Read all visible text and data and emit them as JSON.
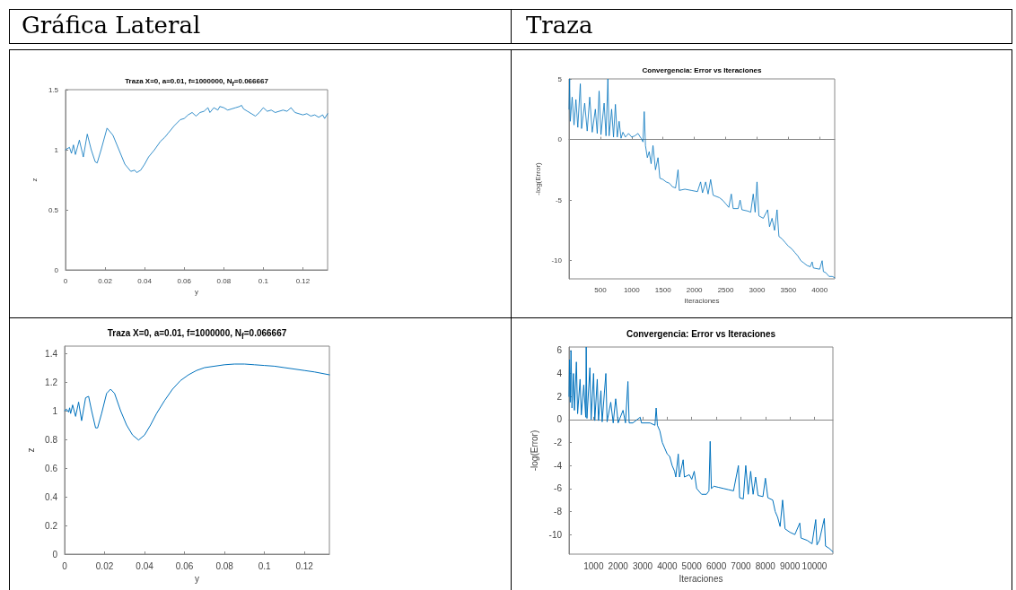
{
  "chart_data": [
    {
      "type": "line",
      "title": "Traza X=0, a=0.01, f=1000000, N$_{f}$=0.066667",
      "xlabel": "y",
      "ylabel": "z",
      "annotations": [
        "Gráfica Lateral"
      ],
      "xlim": [
        0,
        0.1325
      ],
      "ylim": [
        0,
        1.5
      ],
      "xticks": [
        0,
        0.02,
        0.04,
        0.06,
        0.08,
        0.1,
        0.12
      ],
      "yticks": [
        0,
        0.5,
        1,
        1.5
      ],
      "series": [
        {
          "color": "#0072bd",
          "x": [
            0,
            0.002,
            0.003,
            0.004,
            0.005,
            0.007,
            0.009,
            0.011,
            0.013,
            0.015,
            0.016,
            0.018,
            0.021,
            0.024,
            0.027,
            0.03,
            0.033,
            0.035,
            0.036,
            0.038,
            0.04,
            0.042,
            0.045,
            0.048,
            0.05,
            0.052,
            0.055,
            0.058,
            0.06,
            0.062,
            0.064,
            0.066,
            0.068,
            0.07,
            0.072,
            0.073,
            0.075,
            0.077,
            0.078,
            0.08,
            0.082,
            0.084,
            0.086,
            0.088,
            0.089,
            0.09,
            0.092,
            0.094,
            0.096,
            0.098,
            0.1,
            0.102,
            0.104,
            0.106,
            0.108,
            0.11,
            0.112,
            0.114,
            0.116,
            0.118,
            0.12,
            0.122,
            0.124,
            0.126,
            0.128,
            0.13,
            0.131,
            0.1325
          ],
          "values": [
            1.0,
            1.02,
            0.97,
            1.04,
            0.96,
            1.08,
            0.94,
            1.13,
            1.0,
            0.9,
            0.89,
            1.0,
            1.18,
            1.12,
            1.0,
            0.88,
            0.82,
            0.83,
            0.81,
            0.83,
            0.88,
            0.94,
            1.0,
            1.07,
            1.1,
            1.14,
            1.2,
            1.25,
            1.26,
            1.29,
            1.31,
            1.28,
            1.31,
            1.32,
            1.35,
            1.31,
            1.35,
            1.33,
            1.36,
            1.35,
            1.33,
            1.34,
            1.35,
            1.36,
            1.37,
            1.34,
            1.32,
            1.3,
            1.28,
            1.31,
            1.35,
            1.32,
            1.33,
            1.31,
            1.32,
            1.33,
            1.32,
            1.35,
            1.31,
            1.3,
            1.29,
            1.3,
            1.28,
            1.29,
            1.27,
            1.29,
            1.26,
            1.3
          ]
        }
      ]
    },
    {
      "type": "line",
      "title": "Convergencia: Error vs Iteraciones",
      "xlabel": "Iteraciones",
      "ylabel": "-log(Error)",
      "annotations": [
        "Traza"
      ],
      "xlim": [
        0,
        4240
      ],
      "ylim": [
        -11.5,
        5
      ],
      "xticks": [
        500,
        1000,
        1500,
        2000,
        2500,
        3000,
        3500,
        4000
      ],
      "yticks": [
        -10,
        -5,
        0,
        5
      ],
      "series": [
        {
          "color": "#0072bd",
          "x": [
            0,
            10,
            20,
            50,
            80,
            110,
            140,
            180,
            200,
            250,
            290,
            330,
            370,
            420,
            450,
            480,
            510,
            560,
            590,
            620,
            640,
            680,
            710,
            740,
            770,
            800,
            830,
            860,
            900,
            950,
            1000,
            1050,
            1100,
            1150,
            1180,
            1200,
            1220,
            1250,
            1280,
            1310,
            1340,
            1380,
            1420,
            1450,
            1500,
            1550,
            1600,
            1650,
            1700,
            1740,
            1760,
            1850,
            1950,
            2050,
            2100,
            2130,
            2180,
            2220,
            2260,
            2300,
            2400,
            2450,
            2500,
            2550,
            2590,
            2620,
            2700,
            2730,
            2760,
            2850,
            2900,
            2940,
            2970,
            3000,
            3030,
            3100,
            3170,
            3200,
            3240,
            3280,
            3320,
            3350,
            3400,
            3450,
            3500,
            3550,
            3600,
            3650,
            3700,
            3750,
            3800,
            3850,
            3880,
            3900,
            4000,
            4040,
            4060,
            4100,
            4150,
            4200,
            4240
          ],
          "values": [
            2.5,
            5,
            1.5,
            3.5,
            1.2,
            3.3,
            1.0,
            4.6,
            0.9,
            3.0,
            0.7,
            3.5,
            0.6,
            2.5,
            0.5,
            4.0,
            0.4,
            3.0,
            0.3,
            5.0,
            0.3,
            2.5,
            0.2,
            2.9,
            0.2,
            1.5,
            0.1,
            0.6,
            0.2,
            0.5,
            0.2,
            0.3,
            0.5,
            0.1,
            -0.2,
            2.3,
            -0.5,
            -1.5,
            -1.0,
            -2.0,
            -0.5,
            -2.5,
            -1.5,
            -3.2,
            -3.3,
            -3.5,
            -3.6,
            -3.9,
            -4.0,
            -2.5,
            -4.2,
            -4.1,
            -4.2,
            -4.3,
            -3.5,
            -4.4,
            -3.5,
            -4.5,
            -3.3,
            -4.6,
            -4.8,
            -5.0,
            -5.3,
            -5.6,
            -4.5,
            -5.7,
            -5.7,
            -5.0,
            -5.8,
            -5.9,
            -6.0,
            -4.5,
            -6.0,
            -3.5,
            -6.3,
            -6.5,
            -5.8,
            -7.2,
            -6.5,
            -7.5,
            -5.8,
            -8.0,
            -8.2,
            -8.5,
            -8.8,
            -9.0,
            -9.3,
            -9.6,
            -10.0,
            -10.2,
            -10.4,
            -10.5,
            -10.1,
            -10.6,
            -10.7,
            -10.0,
            -10.9,
            -11.0,
            -11.3,
            -11.3,
            -11.4
          ]
        }
      ]
    },
    {
      "type": "line",
      "title": "Traza X=0, a=0.01, f=1000000, N$_{f}$=0.066667",
      "xlabel": "y",
      "ylabel": "z",
      "xlim": [
        0,
        0.1325
      ],
      "ylim": [
        0,
        1.45
      ],
      "xticks": [
        0,
        0.02,
        0.04,
        0.06,
        0.08,
        0.1,
        0.12
      ],
      "yticks": [
        0,
        0.2,
        0.4,
        0.6,
        0.8,
        1,
        1.2,
        1.4
      ],
      "series": [
        {
          "color": "#0072bd",
          "x": [
            0,
            0.001,
            0.002,
            0.0025,
            0.003,
            0.004,
            0.0055,
            0.007,
            0.0085,
            0.0105,
            0.012,
            0.0135,
            0.0155,
            0.0165,
            0.0185,
            0.021,
            0.023,
            0.025,
            0.028,
            0.031,
            0.034,
            0.037,
            0.04,
            0.043,
            0.046,
            0.05,
            0.054,
            0.058,
            0.062,
            0.066,
            0.07,
            0.075,
            0.08,
            0.085,
            0.09,
            0.095,
            0.1,
            0.105,
            0.11,
            0.115,
            0.12,
            0.125,
            0.1325
          ],
          "values": [
            1.0,
            1.01,
            0.99,
            1.02,
            0.98,
            1.04,
            0.96,
            1.06,
            0.93,
            1.09,
            1.1,
            1.0,
            0.88,
            0.88,
            0.98,
            1.12,
            1.15,
            1.12,
            1.0,
            0.9,
            0.83,
            0.795,
            0.83,
            0.9,
            0.98,
            1.07,
            1.15,
            1.21,
            1.25,
            1.28,
            1.3,
            1.31,
            1.32,
            1.325,
            1.325,
            1.32,
            1.315,
            1.31,
            1.3,
            1.29,
            1.28,
            1.27,
            1.25
          ]
        }
      ]
    },
    {
      "type": "line",
      "title": "Convergencia: Error vs Iteraciones",
      "xlabel": "Iteraciones",
      "ylabel": "-log(Error)",
      "xlim": [
        0,
        10750
      ],
      "ylim": [
        -11.7,
        6.3
      ],
      "xticks": [
        1000,
        2000,
        3000,
        4000,
        5000,
        6000,
        7000,
        8000,
        9000,
        10000
      ],
      "yticks": [
        -10,
        -8,
        -6,
        -4,
        -2,
        0,
        2,
        4,
        6
      ],
      "series": [
        {
          "color": "#0072bd",
          "x": [
            0,
            20,
            50,
            80,
            120,
            180,
            220,
            300,
            350,
            450,
            500,
            600,
            680,
            700,
            730,
            850,
            900,
            1000,
            1050,
            1150,
            1200,
            1300,
            1350,
            1500,
            1550,
            1700,
            1800,
            1900,
            2000,
            2200,
            2300,
            2400,
            2450,
            2600,
            2900,
            2950,
            3300,
            3500,
            3550,
            3600,
            3700,
            3800,
            3900,
            4000,
            4100,
            4200,
            4300,
            4350,
            4450,
            4500,
            4650,
            4700,
            4900,
            5000,
            5100,
            5200,
            5400,
            5600,
            5700,
            5750,
            5800,
            5900,
            6100,
            6300,
            6500,
            6700,
            6900,
            6950,
            7100,
            7200,
            7300,
            7400,
            7500,
            7600,
            7700,
            7900,
            8000,
            8100,
            8300,
            8400,
            8500,
            8600,
            8700,
            8800,
            9000,
            9200,
            9400,
            9450,
            9700,
            9900,
            10050,
            10100,
            10200,
            10400,
            10450,
            10600,
            10750
          ],
          "values": [
            2.0,
            5.2,
            1.5,
            6.0,
            1.0,
            4.0,
            0.8,
            5.0,
            0.5,
            3.5,
            0.4,
            3.0,
            0.2,
            6.3,
            0.1,
            4.5,
            0.0,
            4.0,
            -0.1,
            3.5,
            -0.1,
            2.5,
            -0.2,
            4.0,
            -0.2,
            1.5,
            -0.3,
            1.8,
            -0.3,
            0.8,
            -0.3,
            3.3,
            -0.3,
            -0.3,
            0.2,
            -0.3,
            -0.3,
            -0.5,
            1.0,
            -0.5,
            -1.0,
            -2.0,
            -2.5,
            -3.0,
            -3.2,
            -4.0,
            -4.5,
            -5.0,
            -3.0,
            -5.0,
            -3.5,
            -5.0,
            -4.8,
            -5.2,
            -4.5,
            -6.0,
            -6.5,
            -6.5,
            -6.2,
            -1.9,
            -6.0,
            -5.8,
            -5.9,
            -6.0,
            -6.1,
            -6.2,
            -4.0,
            -6.8,
            -6.9,
            -4.0,
            -6.5,
            -4.5,
            -6.5,
            -5.0,
            -6.6,
            -6.7,
            -5.1,
            -6.8,
            -7.0,
            -8.0,
            -8.5,
            -9.3,
            -7.0,
            -9.5,
            -9.8,
            -10.0,
            -9.0,
            -10.3,
            -10.5,
            -10.8,
            -8.7,
            -10.9,
            -10.5,
            -8.6,
            -11.0,
            -11.2,
            -11.5
          ]
        }
      ]
    }
  ]
}
